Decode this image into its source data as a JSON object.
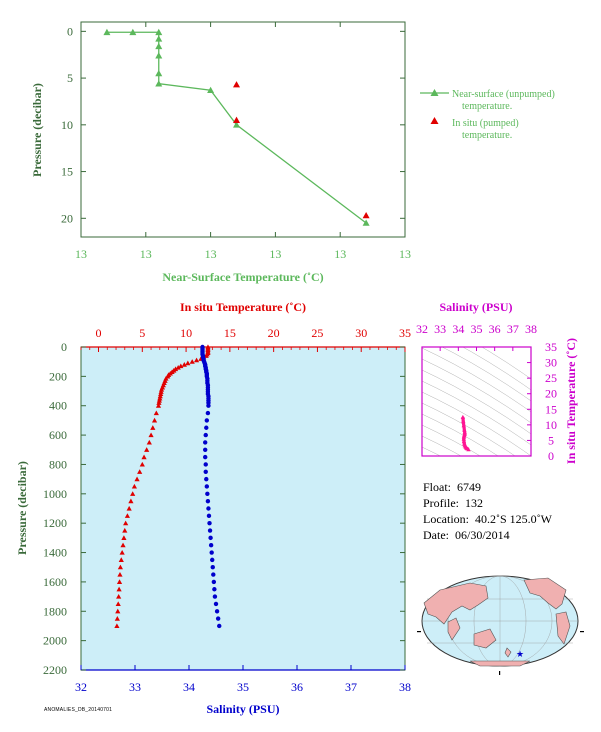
{
  "colors": {
    "green": "#5cb85c",
    "red": "#e00000",
    "blue": "#0000cc",
    "magenta": "#cc00cc",
    "panel_fill": "#cdeef8",
    "land": "#f0b0b0",
    "ocean": "#cdeef8"
  },
  "chart_data": [
    {
      "id": "near_surface",
      "type": "line",
      "xlabel": "Near-Surface Temperature (˚C)",
      "ylabel": "Pressure (decibar)",
      "xticklabels": [
        "13",
        "13",
        "13",
        "13",
        "13",
        "13"
      ],
      "xlim": [
        13.0,
        13.5
      ],
      "ylim": [
        22,
        -1
      ],
      "yticks": [
        0,
        5,
        10,
        15,
        20
      ],
      "series": [
        {
          "name": "Near-surface (unpumped) temperature.",
          "marker": "triangle",
          "color": "#5cb85c",
          "line": true,
          "x": [
            13.04,
            13.08,
            13.12,
            13.12,
            13.12,
            13.12,
            13.12,
            13.12,
            13.2,
            13.24,
            13.44
          ],
          "y": [
            0.1,
            0.1,
            0.1,
            0.8,
            1.6,
            2.6,
            4.5,
            5.6,
            6.3,
            10.0,
            20.5
          ]
        },
        {
          "name": "In situ (pumped) temperature.",
          "marker": "triangle",
          "color": "#e00000",
          "line": false,
          "x": [
            13.24,
            13.24,
            13.44
          ],
          "y": [
            5.7,
            9.5,
            19.7
          ]
        }
      ]
    },
    {
      "id": "profile",
      "type": "scatter",
      "ylabel": "Pressure (decibar)",
      "ylim": [
        2200,
        0
      ],
      "yticks": [
        0,
        200,
        400,
        600,
        800,
        1000,
        1200,
        1400,
        1600,
        1800,
        2000,
        2200
      ],
      "x_top_label": "In situ Temperature (˚C)",
      "x_top_lim": [
        -2,
        35
      ],
      "x_top_ticks": [
        0,
        5,
        10,
        15,
        20,
        25,
        30,
        35
      ],
      "x_bottom_label": "Salinity (PSU)",
      "x_bottom_lim": [
        32,
        38
      ],
      "x_bottom_ticks": [
        32,
        33,
        34,
        35,
        36,
        37,
        38
      ],
      "temperature": {
        "p": [
          0,
          10,
          20,
          30,
          40,
          50,
          60,
          70,
          80,
          90,
          100,
          110,
          120,
          130,
          140,
          150,
          160,
          170,
          180,
          190,
          200,
          215,
          230,
          245,
          260,
          275,
          290,
          305,
          320,
          335,
          350,
          365,
          380,
          400,
          450,
          500,
          550,
          600,
          650,
          700,
          750,
          800,
          850,
          900,
          950,
          1000,
          1050,
          1100,
          1150,
          1200,
          1250,
          1300,
          1350,
          1400,
          1450,
          1500,
          1550,
          1600,
          1650,
          1700,
          1750,
          1800,
          1850,
          1900
        ],
        "t": [
          12.5,
          12.5,
          12.5,
          12.5,
          12.5,
          12.4,
          12.3,
          12.0,
          11.7,
          11.2,
          10.7,
          10.2,
          9.8,
          9.4,
          9.1,
          8.8,
          8.6,
          8.4,
          8.2,
          8.0,
          7.9,
          7.7,
          7.6,
          7.5,
          7.4,
          7.3,
          7.2,
          7.15,
          7.1,
          7.05,
          7.0,
          6.95,
          6.9,
          6.85,
          6.6,
          6.4,
          6.2,
          6.0,
          5.8,
          5.5,
          5.2,
          5.0,
          4.7,
          4.4,
          4.1,
          3.9,
          3.7,
          3.5,
          3.3,
          3.1,
          3.0,
          2.9,
          2.8,
          2.7,
          2.6,
          2.5,
          2.45,
          2.4,
          2.35,
          2.3,
          2.25,
          2.2,
          2.15,
          2.1
        ]
      },
      "salinity": {
        "p": [
          0,
          10,
          20,
          30,
          40,
          50,
          60,
          70,
          80,
          90,
          100,
          110,
          120,
          130,
          140,
          150,
          160,
          170,
          180,
          190,
          200,
          215,
          230,
          245,
          260,
          275,
          290,
          305,
          320,
          335,
          350,
          365,
          380,
          400,
          450,
          500,
          550,
          600,
          650,
          700,
          750,
          800,
          850,
          900,
          950,
          1000,
          1050,
          1100,
          1150,
          1200,
          1250,
          1300,
          1350,
          1400,
          1450,
          1500,
          1550,
          1600,
          1650,
          1700,
          1750,
          1800,
          1850,
          1900
        ],
        "s": [
          34.25,
          34.25,
          34.25,
          34.25,
          34.25,
          34.25,
          34.26,
          34.26,
          34.27,
          34.27,
          34.28,
          34.29,
          34.3,
          34.3,
          34.31,
          34.31,
          34.32,
          34.32,
          34.33,
          34.33,
          34.33,
          34.34,
          34.34,
          34.34,
          34.35,
          34.35,
          34.35,
          34.35,
          34.35,
          34.36,
          34.36,
          34.36,
          34.36,
          34.36,
          34.35,
          34.33,
          34.32,
          34.31,
          34.3,
          34.3,
          34.3,
          34.31,
          34.31,
          34.32,
          34.33,
          34.34,
          34.35,
          34.36,
          34.37,
          34.38,
          34.39,
          34.4,
          34.41,
          34.42,
          34.43,
          34.44,
          34.45,
          34.46,
          34.47,
          34.48,
          34.5,
          34.52,
          34.54,
          34.56
        ]
      }
    },
    {
      "id": "ts_diagram",
      "type": "scatter",
      "x_top_label": "Salinity (PSU)",
      "x_top_ticks": [
        32,
        33,
        34,
        35,
        36,
        37,
        38
      ],
      "xlim": [
        32,
        38
      ],
      "ylabel": "In situ Temperature (˚C)",
      "yticks": [
        0,
        5,
        10,
        15,
        20,
        25,
        30,
        35
      ],
      "ylim": [
        0,
        35
      ],
      "points": {
        "s": [
          34.25,
          34.27,
          34.3,
          34.33,
          34.35,
          34.36,
          34.33,
          34.31,
          34.3,
          34.31,
          34.33,
          34.36,
          34.4,
          34.44,
          34.48,
          34.56
        ],
        "t": [
          12.5,
          11.2,
          9.8,
          8.4,
          7.6,
          7.1,
          6.6,
          6.2,
          5.5,
          4.7,
          3.9,
          3.3,
          2.9,
          2.6,
          2.4,
          2.1
        ]
      }
    }
  ],
  "info": {
    "float_label": "Float:",
    "float_value": "6749",
    "profile_label": "Profile:",
    "profile_value": "132",
    "location_label": "Location:",
    "location_value": "40.2˚S  125.0˚W",
    "date_label": "Date:",
    "date_value": "06/30/2014"
  },
  "map": {
    "marker_icon": "star-icon"
  },
  "footer_stamp": "ANOMALIES_DB_20140701"
}
